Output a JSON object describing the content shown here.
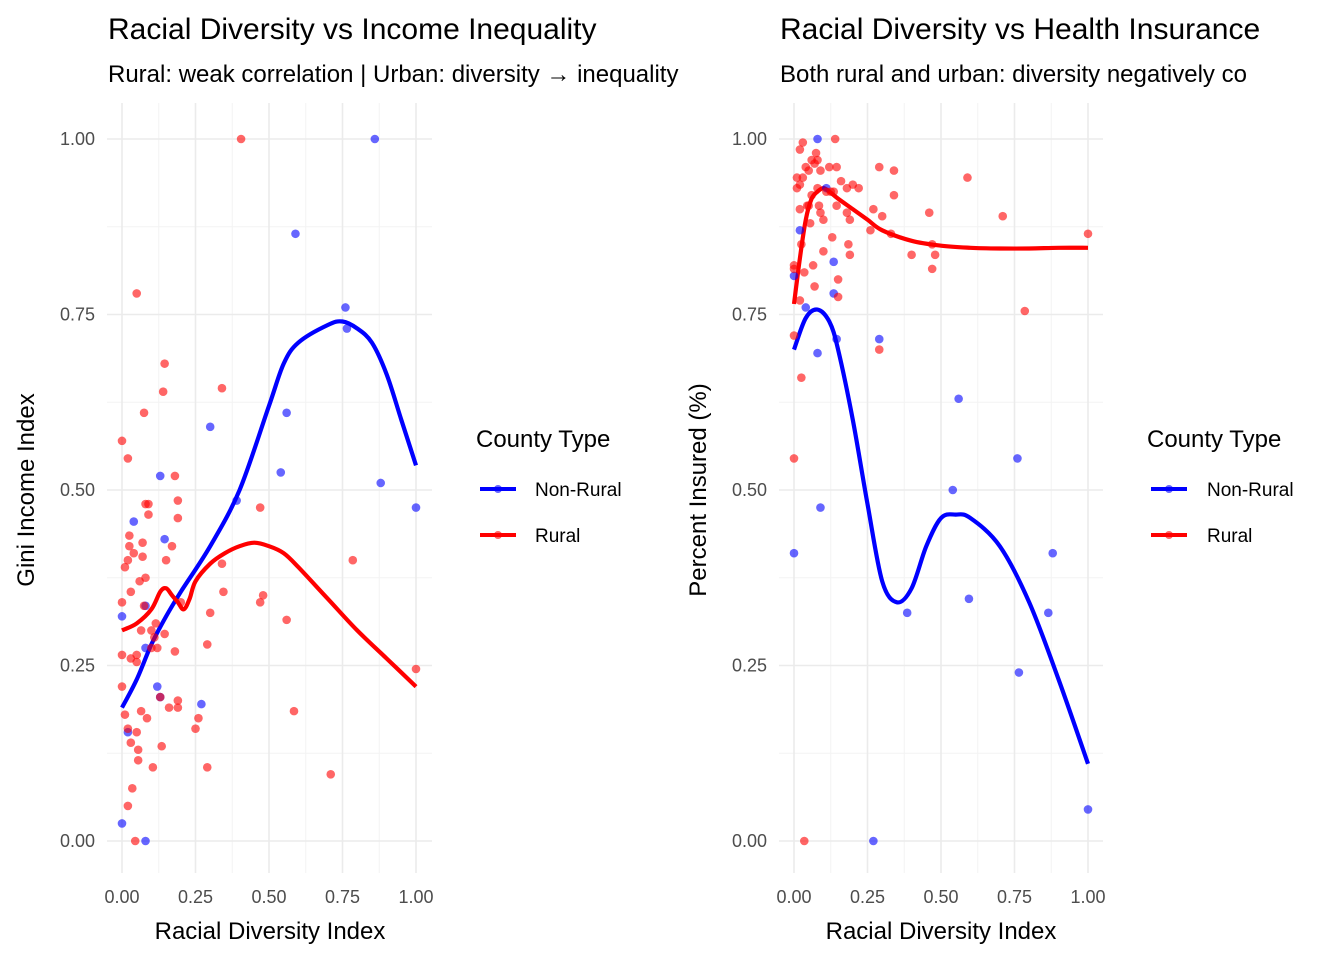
{
  "chart_data": [
    {
      "type": "scatter",
      "title": "Racial Diversity vs Income Inequality",
      "subtitle": "Rural: weak correlation | Urban: diversity → inequality",
      "xlabel": "Racial Diversity Index",
      "ylabel": "Gini Income Index",
      "xlim": [
        0,
        1
      ],
      "ylim": [
        0,
        1
      ],
      "xticks": [
        "0.00",
        "0.25",
        "0.50",
        "0.75",
        "1.00"
      ],
      "yticks": [
        "0.00",
        "0.25",
        "0.50",
        "0.75",
        "1.00"
      ],
      "grid": true,
      "legend": {
        "title": "County Type",
        "position": "right"
      },
      "series": [
        {
          "name": "Non-Rural",
          "color": "#0000ff",
          "points": [
            [
              0.0,
              0.32
            ],
            [
              0.0,
              0.025
            ],
            [
              0.02,
              0.155
            ],
            [
              0.04,
              0.455
            ],
            [
              0.08,
              0.0
            ],
            [
              0.08,
              0.275
            ],
            [
              0.08,
              0.335
            ],
            [
              0.12,
              0.22
            ],
            [
              0.13,
              0.52
            ],
            [
              0.13,
              0.205
            ],
            [
              0.145,
              0.43
            ],
            [
              0.27,
              0.195
            ],
            [
              0.3,
              0.59
            ],
            [
              0.39,
              0.485
            ],
            [
              0.54,
              0.525
            ],
            [
              0.56,
              0.61
            ],
            [
              0.59,
              0.865
            ],
            [
              0.76,
              0.76
            ],
            [
              0.765,
              0.73
            ],
            [
              0.86,
              1.0
            ],
            [
              0.88,
              0.51
            ],
            [
              1.0,
              0.475
            ]
          ],
          "trend": [
            [
              0.0,
              0.19
            ],
            [
              0.05,
              0.23
            ],
            [
              0.1,
              0.28
            ],
            [
              0.15,
              0.32
            ],
            [
              0.2,
              0.355
            ],
            [
              0.3,
              0.42
            ],
            [
              0.4,
              0.5
            ],
            [
              0.5,
              0.62
            ],
            [
              0.55,
              0.68
            ],
            [
              0.6,
              0.71
            ],
            [
              0.7,
              0.735
            ],
            [
              0.75,
              0.74
            ],
            [
              0.8,
              0.73
            ],
            [
              0.85,
              0.71
            ],
            [
              0.9,
              0.665
            ],
            [
              0.95,
              0.6
            ],
            [
              1.0,
              0.535
            ]
          ]
        },
        {
          "name": "Rural",
          "color": "#ff0000",
          "points": [
            [
              0.0,
              0.57
            ],
            [
              0.0,
              0.34
            ],
            [
              0.0,
              0.265
            ],
            [
              0.0,
              0.22
            ],
            [
              0.01,
              0.39
            ],
            [
              0.01,
              0.18
            ],
            [
              0.02,
              0.545
            ],
            [
              0.02,
              0.4
            ],
            [
              0.02,
              0.16
            ],
            [
              0.02,
              0.05
            ],
            [
              0.025,
              0.435
            ],
            [
              0.025,
              0.42
            ],
            [
              0.03,
              0.355
            ],
            [
              0.03,
              0.26
            ],
            [
              0.03,
              0.14
            ],
            [
              0.035,
              0.075
            ],
            [
              0.04,
              0.41
            ],
            [
              0.045,
              0.0
            ],
            [
              0.05,
              0.78
            ],
            [
              0.05,
              0.265
            ],
            [
              0.05,
              0.255
            ],
            [
              0.05,
              0.155
            ],
            [
              0.055,
              0.13
            ],
            [
              0.055,
              0.115
            ],
            [
              0.06,
              0.37
            ],
            [
              0.065,
              0.3
            ],
            [
              0.065,
              0.185
            ],
            [
              0.07,
              0.425
            ],
            [
              0.07,
              0.405
            ],
            [
              0.075,
              0.61
            ],
            [
              0.075,
              0.335
            ],
            [
              0.08,
              0.48
            ],
            [
              0.08,
              0.375
            ],
            [
              0.085,
              0.175
            ],
            [
              0.09,
              0.48
            ],
            [
              0.09,
              0.465
            ],
            [
              0.1,
              0.3
            ],
            [
              0.1,
              0.275
            ],
            [
              0.105,
              0.105
            ],
            [
              0.11,
              0.29
            ],
            [
              0.115,
              0.31
            ],
            [
              0.12,
              0.275
            ],
            [
              0.13,
              0.205
            ],
            [
              0.135,
              0.135
            ],
            [
              0.14,
              0.64
            ],
            [
              0.145,
              0.68
            ],
            [
              0.145,
              0.295
            ],
            [
              0.15,
              0.4
            ],
            [
              0.16,
              0.19
            ],
            [
              0.17,
              0.42
            ],
            [
              0.18,
              0.52
            ],
            [
              0.18,
              0.27
            ],
            [
              0.19,
              0.485
            ],
            [
              0.19,
              0.46
            ],
            [
              0.19,
              0.2
            ],
            [
              0.19,
              0.19
            ],
            [
              0.2,
              0.34
            ],
            [
              0.25,
              0.16
            ],
            [
              0.26,
              0.175
            ],
            [
              0.29,
              0.28
            ],
            [
              0.29,
              0.105
            ],
            [
              0.3,
              0.325
            ],
            [
              0.34,
              0.645
            ],
            [
              0.34,
              0.395
            ],
            [
              0.345,
              0.355
            ],
            [
              0.405,
              1.0
            ],
            [
              0.47,
              0.475
            ],
            [
              0.47,
              0.34
            ],
            [
              0.48,
              0.35
            ],
            [
              0.56,
              0.315
            ],
            [
              0.585,
              0.185
            ],
            [
              0.71,
              0.095
            ],
            [
              0.785,
              0.4
            ],
            [
              1.0,
              0.245
            ]
          ],
          "trend": [
            [
              0.0,
              0.3
            ],
            [
              0.05,
              0.31
            ],
            [
              0.1,
              0.33
            ],
            [
              0.13,
              0.355
            ],
            [
              0.15,
              0.36
            ],
            [
              0.17,
              0.35
            ],
            [
              0.19,
              0.34
            ],
            [
              0.21,
              0.33
            ],
            [
              0.23,
              0.345
            ],
            [
              0.25,
              0.37
            ],
            [
              0.3,
              0.395
            ],
            [
              0.35,
              0.41
            ],
            [
              0.4,
              0.42
            ],
            [
              0.45,
              0.425
            ],
            [
              0.5,
              0.42
            ],
            [
              0.55,
              0.41
            ],
            [
              0.6,
              0.39
            ],
            [
              0.7,
              0.345
            ],
            [
              0.8,
              0.3
            ],
            [
              0.9,
              0.26
            ],
            [
              1.0,
              0.22
            ]
          ]
        }
      ]
    },
    {
      "type": "scatter",
      "title": "Racial Diversity vs Health Insurance",
      "subtitle": "Both rural and urban: diversity negatively co",
      "xlabel": "Racial Diversity Index",
      "ylabel": "Percent Insured (%)",
      "xlim": [
        0,
        1
      ],
      "ylim": [
        0,
        1
      ],
      "xticks": [
        "0.00",
        "0.25",
        "0.50",
        "0.75",
        "1.00"
      ],
      "yticks": [
        "0.00",
        "0.25",
        "0.50",
        "0.75",
        "1.00"
      ],
      "grid": true,
      "legend": {
        "title": "County Type",
        "position": "right"
      },
      "series": [
        {
          "name": "Non-Rural",
          "color": "#0000ff",
          "points": [
            [
              0.0,
              0.805
            ],
            [
              0.0,
              0.41
            ],
            [
              0.02,
              0.87
            ],
            [
              0.04,
              0.76
            ],
            [
              0.08,
              1.0
            ],
            [
              0.08,
              0.695
            ],
            [
              0.09,
              0.475
            ],
            [
              0.11,
              0.93
            ],
            [
              0.135,
              0.825
            ],
            [
              0.135,
              0.78
            ],
            [
              0.145,
              0.715
            ],
            [
              0.27,
              0.0
            ],
            [
              0.29,
              0.715
            ],
            [
              0.385,
              0.325
            ],
            [
              0.54,
              0.5
            ],
            [
              0.56,
              0.63
            ],
            [
              0.595,
              0.345
            ],
            [
              0.76,
              0.545
            ],
            [
              0.765,
              0.24
            ],
            [
              0.865,
              0.325
            ],
            [
              0.88,
              0.41
            ],
            [
              1.0,
              0.045
            ]
          ],
          "trend": [
            [
              0.0,
              0.7
            ],
            [
              0.04,
              0.745
            ],
            [
              0.08,
              0.757
            ],
            [
              0.12,
              0.74
            ],
            [
              0.15,
              0.7
            ],
            [
              0.2,
              0.6
            ],
            [
              0.25,
              0.48
            ],
            [
              0.3,
              0.37
            ],
            [
              0.35,
              0.34
            ],
            [
              0.4,
              0.36
            ],
            [
              0.45,
              0.42
            ],
            [
              0.5,
              0.46
            ],
            [
              0.55,
              0.465
            ],
            [
              0.6,
              0.46
            ],
            [
              0.7,
              0.42
            ],
            [
              0.8,
              0.34
            ],
            [
              0.9,
              0.23
            ],
            [
              1.0,
              0.11
            ]
          ]
        },
        {
          "name": "Rural",
          "color": "#ff0000",
          "points": [
            [
              0.0,
              0.82
            ],
            [
              0.0,
              0.815
            ],
            [
              0.0,
              0.72
            ],
            [
              0.0,
              0.545
            ],
            [
              0.01,
              0.945
            ],
            [
              0.01,
              0.93
            ],
            [
              0.02,
              0.985
            ],
            [
              0.02,
              0.935
            ],
            [
              0.02,
              0.9
            ],
            [
              0.02,
              0.77
            ],
            [
              0.025,
              0.85
            ],
            [
              0.025,
              0.66
            ],
            [
              0.03,
              0.995
            ],
            [
              0.03,
              0.945
            ],
            [
              0.035,
              0.81
            ],
            [
              0.035,
              0.0
            ],
            [
              0.04,
              0.96
            ],
            [
              0.045,
              0.905
            ],
            [
              0.05,
              0.955
            ],
            [
              0.05,
              0.905
            ],
            [
              0.055,
              0.88
            ],
            [
              0.06,
              0.97
            ],
            [
              0.06,
              0.92
            ],
            [
              0.065,
              0.82
            ],
            [
              0.07,
              0.965
            ],
            [
              0.07,
              0.79
            ],
            [
              0.075,
              0.98
            ],
            [
              0.08,
              0.97
            ],
            [
              0.08,
              0.93
            ],
            [
              0.085,
              0.905
            ],
            [
              0.09,
              0.955
            ],
            [
              0.09,
              0.895
            ],
            [
              0.1,
              0.885
            ],
            [
              0.1,
              0.84
            ],
            [
              0.11,
              0.925
            ],
            [
              0.12,
              0.96
            ],
            [
              0.125,
              0.925
            ],
            [
              0.13,
              0.86
            ],
            [
              0.135,
              0.925
            ],
            [
              0.14,
              1.0
            ],
            [
              0.145,
              0.96
            ],
            [
              0.145,
              0.905
            ],
            [
              0.15,
              0.8
            ],
            [
              0.15,
              0.775
            ],
            [
              0.16,
              0.94
            ],
            [
              0.18,
              0.93
            ],
            [
              0.18,
              0.895
            ],
            [
              0.185,
              0.85
            ],
            [
              0.19,
              0.885
            ],
            [
              0.19,
              0.835
            ],
            [
              0.2,
              0.935
            ],
            [
              0.22,
              0.93
            ],
            [
              0.26,
              0.87
            ],
            [
              0.27,
              0.9
            ],
            [
              0.29,
              0.96
            ],
            [
              0.29,
              0.7
            ],
            [
              0.3,
              0.89
            ],
            [
              0.33,
              0.865
            ],
            [
              0.34,
              0.955
            ],
            [
              0.34,
              0.92
            ],
            [
              0.4,
              0.835
            ],
            [
              0.46,
              0.895
            ],
            [
              0.47,
              0.85
            ],
            [
              0.47,
              0.815
            ],
            [
              0.48,
              0.835
            ],
            [
              0.59,
              0.945
            ],
            [
              0.71,
              0.89
            ],
            [
              0.785,
              0.755
            ],
            [
              1.0,
              0.865
            ]
          ],
          "trend": [
            [
              0.0,
              0.765
            ],
            [
              0.02,
              0.83
            ],
            [
              0.04,
              0.885
            ],
            [
              0.06,
              0.915
            ],
            [
              0.08,
              0.925
            ],
            [
              0.1,
              0.93
            ],
            [
              0.12,
              0.925
            ],
            [
              0.15,
              0.915
            ],
            [
              0.2,
              0.9
            ],
            [
              0.25,
              0.885
            ],
            [
              0.3,
              0.87
            ],
            [
              0.4,
              0.855
            ],
            [
              0.5,
              0.848
            ],
            [
              0.6,
              0.845
            ],
            [
              0.7,
              0.844
            ],
            [
              0.8,
              0.844
            ],
            [
              0.9,
              0.845
            ],
            [
              1.0,
              0.845
            ]
          ]
        }
      ]
    }
  ]
}
